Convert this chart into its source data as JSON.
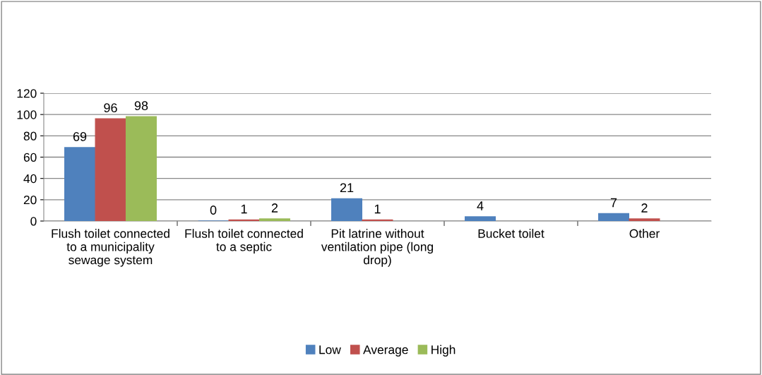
{
  "chart_data": {
    "type": "bar",
    "categories": [
      "Flush toilet connected\nto a municipality\nsewage system",
      "Flush toilet connected\nto a septic",
      "Pit latrine without\nventilation pipe (long\ndrop)",
      "Bucket toilet",
      "Other"
    ],
    "series": [
      {
        "name": "Low",
        "color": "#4f81bd",
        "values": [
          69,
          0,
          21,
          4,
          7
        ]
      },
      {
        "name": "Average",
        "color": "#c0504d",
        "values": [
          96,
          1,
          1,
          null,
          2
        ]
      },
      {
        "name": "High",
        "color": "#9bbb59",
        "values": [
          98,
          2,
          null,
          null,
          null
        ]
      }
    ],
    "ylim": [
      0,
      120
    ],
    "yticks": [
      0,
      20,
      40,
      60,
      80,
      100,
      120
    ],
    "grid": "y",
    "legend": "bottom",
    "data_labels": true
  }
}
